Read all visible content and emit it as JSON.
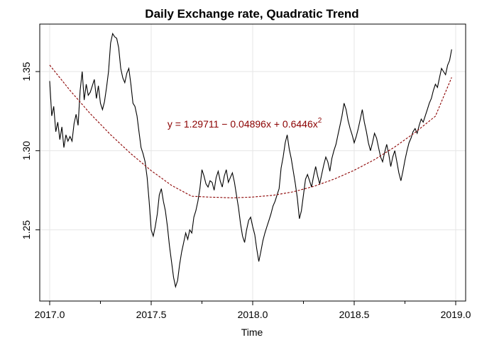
{
  "chart_data": {
    "type": "line",
    "title": "Daily Exchange rate, Quadratic Trend",
    "xlabel": "Time",
    "ylabel": "",
    "xlim": [
      2017.0,
      2019.0
    ],
    "ylim": [
      1.205,
      1.38
    ],
    "x_ticks": [
      2017.0,
      2017.5,
      2018.0,
      2018.5,
      2019.0
    ],
    "x_tick_labels": [
      "2017.0",
      "2017.5",
      "2018.0",
      "2018.5",
      "2019.0"
    ],
    "x_minor_ticks": [
      2017.25,
      2017.75,
      2018.25,
      2018.75
    ],
    "y_ticks": [
      1.25,
      1.3,
      1.35
    ],
    "y_tick_labels": [
      "1.25",
      "1.30",
      "1.35"
    ],
    "grid": true,
    "series": [
      {
        "style": "solid",
        "color": "#000000",
        "x": [
          2017.0,
          2017.01,
          2017.02,
          2017.03,
          2017.04,
          2017.05,
          2017.06,
          2017.07,
          2017.08,
          2017.09,
          2017.1,
          2017.11,
          2017.12,
          2017.13,
          2017.14,
          2017.15,
          2017.16,
          2017.17,
          2017.18,
          2017.19,
          2017.2,
          2017.21,
          2017.22,
          2017.23,
          2017.24,
          2017.25,
          2017.26,
          2017.27,
          2017.28,
          2017.29,
          2017.3,
          2017.31,
          2017.32,
          2017.33,
          2017.34,
          2017.35,
          2017.36,
          2017.37,
          2017.38,
          2017.39,
          2017.4,
          2017.41,
          2017.42,
          2017.43,
          2017.44,
          2017.45,
          2017.46,
          2017.47,
          2017.48,
          2017.49,
          2017.5,
          2017.51,
          2017.52,
          2017.53,
          2017.54,
          2017.55,
          2017.56,
          2017.57,
          2017.58,
          2017.59,
          2017.6,
          2017.61,
          2017.62,
          2017.63,
          2017.64,
          2017.65,
          2017.66,
          2017.67,
          2017.68,
          2017.69,
          2017.7,
          2017.71,
          2017.72,
          2017.73,
          2017.74,
          2017.75,
          2017.76,
          2017.77,
          2017.78,
          2017.79,
          2017.8,
          2017.81,
          2017.82,
          2017.83,
          2017.84,
          2017.85,
          2017.86,
          2017.87,
          2017.88,
          2017.89,
          2017.9,
          2017.91,
          2017.92,
          2017.93,
          2017.94,
          2017.95,
          2017.96,
          2017.97,
          2017.98,
          2017.99,
          2018.0,
          2018.01,
          2018.02,
          2018.03,
          2018.04,
          2018.05,
          2018.06,
          2018.07,
          2018.08,
          2018.09,
          2018.1,
          2018.11,
          2018.12,
          2018.13,
          2018.14,
          2018.15,
          2018.16,
          2018.17,
          2018.18,
          2018.19,
          2018.2,
          2018.21,
          2018.22,
          2018.23,
          2018.24,
          2018.25,
          2018.26,
          2018.27,
          2018.28,
          2018.29,
          2018.3,
          2018.31,
          2018.32,
          2018.33,
          2018.34,
          2018.35,
          2018.36,
          2018.37,
          2018.38,
          2018.39,
          2018.4,
          2018.41,
          2018.42,
          2018.43,
          2018.44,
          2018.45,
          2018.46,
          2018.47,
          2018.48,
          2018.49,
          2018.5,
          2018.51,
          2018.52,
          2018.53,
          2018.54,
          2018.55,
          2018.56,
          2018.57,
          2018.58,
          2018.59,
          2018.6,
          2018.61,
          2018.62,
          2018.63,
          2018.64,
          2018.65,
          2018.66,
          2018.67,
          2018.68,
          2018.69,
          2018.7,
          2018.71,
          2018.72,
          2018.73,
          2018.74,
          2018.75,
          2018.76,
          2018.77,
          2018.78,
          2018.79,
          2018.8,
          2018.81,
          2018.82,
          2018.83,
          2018.84,
          2018.85,
          2018.86,
          2018.87,
          2018.88,
          2018.89,
          2018.9,
          2018.91,
          2018.92,
          2018.93,
          2018.94,
          2018.95,
          2018.96,
          2018.97,
          2018.98
        ],
        "y": [
          1.344,
          1.322,
          1.328,
          1.312,
          1.318,
          1.307,
          1.315,
          1.302,
          1.31,
          1.306,
          1.309,
          1.306,
          1.317,
          1.323,
          1.316,
          1.338,
          1.35,
          1.332,
          1.342,
          1.335,
          1.337,
          1.341,
          1.345,
          1.333,
          1.341,
          1.33,
          1.326,
          1.331,
          1.34,
          1.35,
          1.368,
          1.374,
          1.372,
          1.371,
          1.365,
          1.352,
          1.346,
          1.343,
          1.349,
          1.352,
          1.342,
          1.33,
          1.328,
          1.322,
          1.312,
          1.302,
          1.298,
          1.293,
          1.283,
          1.268,
          1.25,
          1.246,
          1.252,
          1.26,
          1.272,
          1.276,
          1.268,
          1.262,
          1.252,
          1.24,
          1.23,
          1.22,
          1.214,
          1.218,
          1.228,
          1.236,
          1.242,
          1.248,
          1.244,
          1.25,
          1.248,
          1.258,
          1.262,
          1.268,
          1.276,
          1.288,
          1.284,
          1.279,
          1.277,
          1.281,
          1.28,
          1.275,
          1.283,
          1.287,
          1.281,
          1.277,
          1.284,
          1.288,
          1.28,
          1.283,
          1.286,
          1.28,
          1.272,
          1.264,
          1.254,
          1.246,
          1.242,
          1.25,
          1.256,
          1.258,
          1.252,
          1.247,
          1.238,
          1.23,
          1.236,
          1.243,
          1.248,
          1.252,
          1.256,
          1.26,
          1.265,
          1.268,
          1.272,
          1.276,
          1.289,
          1.296,
          1.305,
          1.31,
          1.301,
          1.295,
          1.287,
          1.279,
          1.27,
          1.257,
          1.262,
          1.272,
          1.282,
          1.285,
          1.281,
          1.277,
          1.284,
          1.29,
          1.284,
          1.279,
          1.285,
          1.291,
          1.296,
          1.293,
          1.287,
          1.295,
          1.3,
          1.304,
          1.31,
          1.316,
          1.322,
          1.33,
          1.326,
          1.319,
          1.314,
          1.31,
          1.305,
          1.309,
          1.314,
          1.32,
          1.326,
          1.318,
          1.312,
          1.305,
          1.3,
          1.305,
          1.311,
          1.308,
          1.302,
          1.296,
          1.293,
          1.299,
          1.304,
          1.298,
          1.29,
          1.296,
          1.3,
          1.293,
          1.286,
          1.281,
          1.287,
          1.294,
          1.3,
          1.305,
          1.308,
          1.312,
          1.314,
          1.311,
          1.316,
          1.32,
          1.318,
          1.322,
          1.326,
          1.33,
          1.333,
          1.338,
          1.342,
          1.34,
          1.346,
          1.352,
          1.35,
          1.348,
          1.354,
          1.357,
          1.364
        ]
      },
      {
        "style": "dashed",
        "color": "#8b0000",
        "x": [
          2017.0,
          2017.1,
          2017.2,
          2017.3,
          2017.4,
          2017.5,
          2017.6,
          2017.7,
          2017.8,
          2017.9,
          2018.0,
          2018.1,
          2018.2,
          2018.3,
          2018.4,
          2018.5,
          2018.6,
          2018.7,
          2018.8,
          2018.9,
          2018.98
        ],
        "y": [
          1.3541,
          1.3381,
          1.3234,
          1.3101,
          1.2981,
          1.2874,
          1.2781,
          1.2712,
          1.2706,
          1.2702,
          1.2707,
          1.2718,
          1.274,
          1.2774,
          1.282,
          1.2876,
          1.2944,
          1.3024,
          1.3115,
          1.3218,
          1.3463
        ]
      }
    ],
    "annotations": [
      {
        "text_prefix": "y = 1.29711 − 0.04896x + 0.6446x",
        "superscript": "2",
        "color": "#8b0000",
        "x": 2017.58,
        "y": 1.317
      }
    ]
  }
}
